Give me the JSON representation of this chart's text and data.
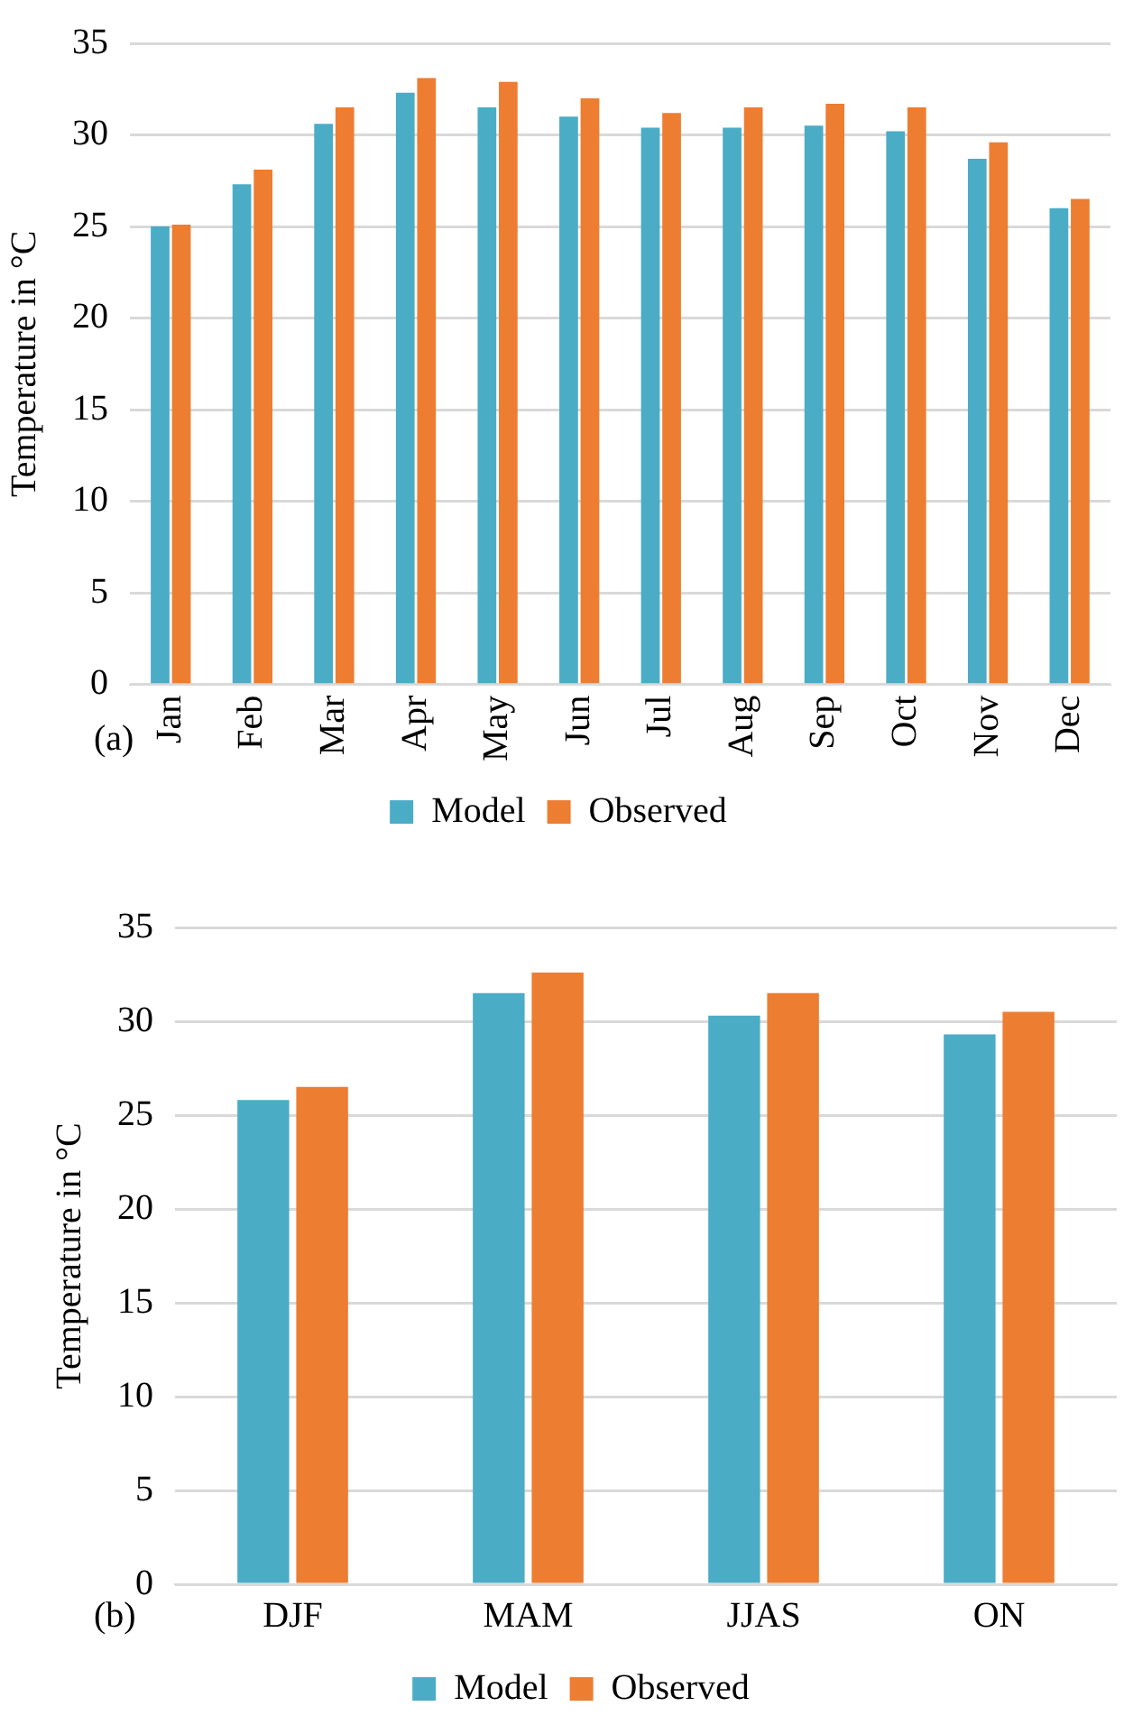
{
  "chart_data": [
    {
      "type": "bar",
      "categories": [
        "Jan",
        "Feb",
        "Mar",
        "Apr",
        "May",
        "Jun",
        "Jul",
        "Aug",
        "Sep",
        "Oct",
        "Nov",
        "Dec"
      ],
      "series": [
        {
          "name": "Model",
          "color": "#4bacc6",
          "values": [
            25.0,
            27.3,
            30.6,
            32.3,
            31.5,
            31.0,
            30.4,
            30.4,
            30.5,
            30.2,
            28.7,
            26.0
          ]
        },
        {
          "name": "Observed",
          "color": "#ed7d31",
          "values": [
            25.1,
            28.1,
            31.5,
            33.1,
            32.9,
            32.0,
            31.2,
            31.5,
            31.7,
            31.5,
            29.6,
            26.5
          ]
        }
      ],
      "ylabel": "Temperature in °C",
      "ylim": [
        0,
        35
      ],
      "yticks": [
        0,
        5,
        10,
        15,
        20,
        25,
        30,
        35
      ],
      "grid": "y",
      "legend": "bottom",
      "annotations": [
        "(a)"
      ]
    },
    {
      "type": "bar",
      "categories": [
        "DJF",
        "MAM",
        "JJAS",
        "ON"
      ],
      "series": [
        {
          "name": "Model",
          "color": "#4bacc6",
          "values": [
            25.8,
            31.5,
            30.3,
            29.3
          ]
        },
        {
          "name": "Observed",
          "color": "#ed7d31",
          "values": [
            26.5,
            32.6,
            31.5,
            30.5
          ]
        }
      ],
      "ylabel": "Temperature in °C",
      "ylim": [
        0,
        35
      ],
      "yticks": [
        0,
        5,
        10,
        15,
        20,
        25,
        30,
        35
      ],
      "grid": "y",
      "legend": "bottom",
      "annotations": [
        "(b)"
      ]
    }
  ]
}
